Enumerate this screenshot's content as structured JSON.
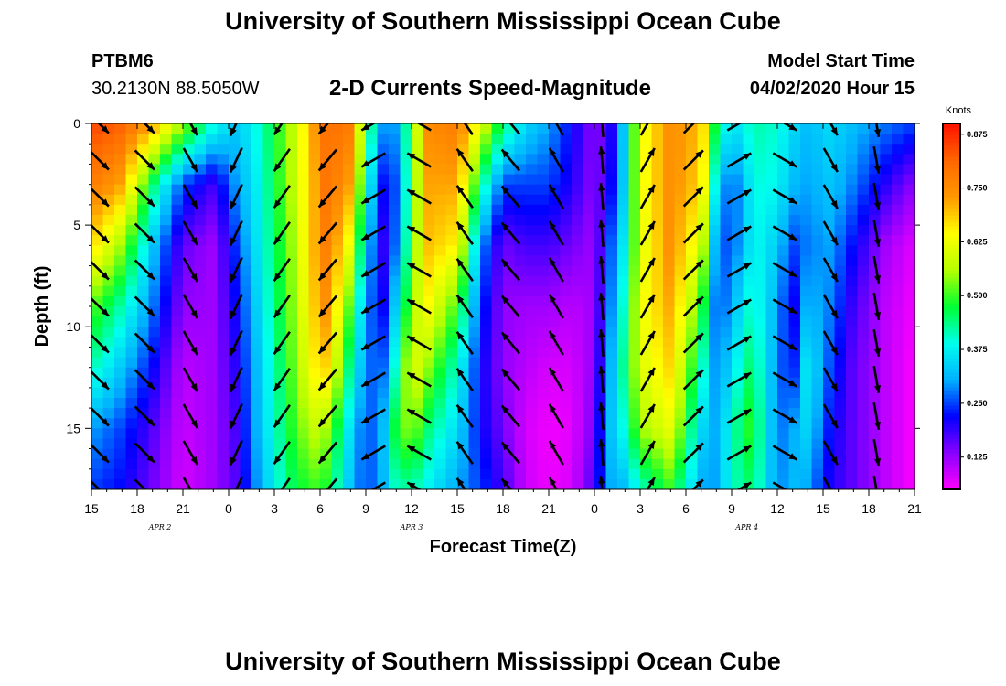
{
  "header": {
    "title": "University of Southern Mississippi Ocean Cube",
    "station_id": "PTBM6",
    "station_coords": "30.2130N 88.5050W",
    "subtitle": "2-D Currents Speed-Magnitude",
    "model_start_label": "Model Start Time",
    "model_start_value": "04/02/2020 Hour 15"
  },
  "footer": {
    "title": "University of Southern Mississippi Ocean Cube"
  },
  "chart_data": {
    "type": "heatmap",
    "title": "2-D Currents Speed-Magnitude",
    "xlabel": "Forecast Time(Z)",
    "ylabel": "Depth (ft)",
    "x_start_hour": 15,
    "x_end_hour": 69,
    "x_ticks": [
      "15",
      "18",
      "21",
      "0",
      "3",
      "6",
      "9",
      "12",
      "15",
      "18",
      "21",
      "0",
      "3",
      "6",
      "9",
      "12",
      "15",
      "18",
      "21"
    ],
    "date_labels": [
      {
        "label": "APR 2",
        "hour": 19.5
      },
      {
        "label": "APR 3",
        "hour": 36
      },
      {
        "label": "APR 4",
        "hour": 58
      }
    ],
    "y_range": [
      0,
      18
    ],
    "y_ticks": [
      0,
      5,
      10,
      15
    ],
    "colorbar": {
      "title": "Knots",
      "range": [
        0.05,
        0.9
      ],
      "labels": [
        "0.875",
        "0.750",
        "0.625",
        "0.500",
        "0.375",
        "0.250",
        "0.125"
      ],
      "label_values": [
        0.875,
        0.75,
        0.625,
        0.5,
        0.375,
        0.25,
        0.125
      ],
      "colors": [
        "#ff00ff",
        "#8a00ff",
        "#0000ff",
        "#00b0ff",
        "#00ffee",
        "#00ff33",
        "#b5ff00",
        "#ffff00",
        "#ff9900",
        "#ff6600",
        "#ff1100"
      ]
    },
    "speed_profiles": {
      "depths_ft": [
        0,
        3,
        6,
        9,
        12,
        15,
        18
      ],
      "points": [
        {
          "hour": 15,
          "speeds": [
            0.85,
            0.78,
            0.68,
            0.52,
            0.42,
            0.3,
            0.25
          ]
        },
        {
          "hour": 17,
          "speeds": [
            0.82,
            0.72,
            0.55,
            0.42,
            0.33,
            0.25,
            0.22
          ]
        },
        {
          "hour": 19,
          "speeds": [
            0.72,
            0.45,
            0.33,
            0.28,
            0.22,
            0.17,
            0.15
          ]
        },
        {
          "hour": 21,
          "speeds": [
            0.55,
            0.25,
            0.16,
            0.13,
            0.1,
            0.09,
            0.08
          ]
        },
        {
          "hour": 23,
          "speeds": [
            0.4,
            0.18,
            0.12,
            0.12,
            0.12,
            0.12,
            0.12
          ]
        },
        {
          "hour": 24.5,
          "speeds": [
            0.33,
            0.3,
            0.25,
            0.22,
            0.2,
            0.18,
            0.17
          ]
        },
        {
          "hour": 26,
          "speeds": [
            0.4,
            0.38,
            0.37,
            0.35,
            0.33,
            0.32,
            0.3
          ]
        },
        {
          "hour": 28,
          "speeds": [
            0.55,
            0.55,
            0.53,
            0.52,
            0.5,
            0.48,
            0.45
          ]
        },
        {
          "hour": 29.5,
          "speeds": [
            0.72,
            0.7,
            0.7,
            0.68,
            0.65,
            0.58,
            0.5
          ]
        },
        {
          "hour": 30.5,
          "speeds": [
            0.8,
            0.8,
            0.78,
            0.75,
            0.68,
            0.55,
            0.48
          ]
        },
        {
          "hour": 32,
          "speeds": [
            0.78,
            0.72,
            0.62,
            0.5,
            0.42,
            0.35,
            0.32
          ]
        },
        {
          "hour": 33,
          "speeds": [
            0.5,
            0.42,
            0.35,
            0.3,
            0.28,
            0.25,
            0.25
          ]
        },
        {
          "hour": 34,
          "speeds": [
            0.3,
            0.22,
            0.18,
            0.2,
            0.25,
            0.3,
            0.3
          ]
        },
        {
          "hour": 35,
          "speeds": [
            0.3,
            0.26,
            0.28,
            0.35,
            0.42,
            0.5,
            0.42
          ]
        },
        {
          "hour": 36,
          "speeds": [
            0.5,
            0.48,
            0.5,
            0.55,
            0.62,
            0.55,
            0.42
          ]
        },
        {
          "hour": 37,
          "speeds": [
            0.75,
            0.72,
            0.7,
            0.65,
            0.55,
            0.45,
            0.38
          ]
        },
        {
          "hour": 39,
          "speeds": [
            0.78,
            0.72,
            0.65,
            0.5,
            0.4,
            0.35,
            0.3
          ]
        },
        {
          "hour": 40.5,
          "speeds": [
            0.62,
            0.45,
            0.3,
            0.25,
            0.22,
            0.22,
            0.25
          ]
        },
        {
          "hour": 42,
          "speeds": [
            0.45,
            0.25,
            0.15,
            0.13,
            0.13,
            0.15,
            0.18
          ]
        },
        {
          "hour": 43.5,
          "speeds": [
            0.35,
            0.25,
            0.18,
            0.12,
            0.1,
            0.08,
            0.09
          ]
        },
        {
          "hour": 45,
          "speeds": [
            0.3,
            0.25,
            0.18,
            0.12,
            0.08,
            0.06,
            0.06
          ]
        },
        {
          "hour": 46.5,
          "speeds": [
            0.22,
            0.2,
            0.15,
            0.1,
            0.08,
            0.07,
            0.08
          ]
        },
        {
          "hour": 48,
          "speeds": [
            0.13,
            0.13,
            0.12,
            0.12,
            0.13,
            0.15,
            0.18
          ]
        },
        {
          "hour": 49,
          "speeds": [
            0.18,
            0.2,
            0.25,
            0.27,
            0.3,
            0.32,
            0.3
          ]
        },
        {
          "hour": 50,
          "speeds": [
            0.35,
            0.35,
            0.38,
            0.42,
            0.45,
            0.4,
            0.32
          ]
        },
        {
          "hour": 51,
          "speeds": [
            0.62,
            0.62,
            0.6,
            0.62,
            0.6,
            0.55,
            0.4
          ]
        },
        {
          "hour": 53,
          "speeds": [
            0.75,
            0.75,
            0.75,
            0.72,
            0.68,
            0.62,
            0.5
          ]
        },
        {
          "hour": 55,
          "speeds": [
            0.7,
            0.68,
            0.6,
            0.5,
            0.42,
            0.35,
            0.3
          ]
        },
        {
          "hour": 56,
          "speeds": [
            0.45,
            0.35,
            0.28,
            0.25,
            0.28,
            0.3,
            0.3
          ]
        },
        {
          "hour": 57,
          "speeds": [
            0.35,
            0.25,
            0.25,
            0.3,
            0.35,
            0.4,
            0.4
          ]
        },
        {
          "hour": 58,
          "speeds": [
            0.4,
            0.35,
            0.35,
            0.4,
            0.45,
            0.5,
            0.45
          ]
        },
        {
          "hour": 59,
          "speeds": [
            0.42,
            0.4,
            0.38,
            0.38,
            0.4,
            0.42,
            0.4
          ]
        },
        {
          "hour": 60,
          "speeds": [
            0.4,
            0.38,
            0.33,
            0.3,
            0.28,
            0.27,
            0.28
          ]
        },
        {
          "hour": 61,
          "speeds": [
            0.35,
            0.32,
            0.25,
            0.2,
            0.22,
            0.3,
            0.32
          ]
        },
        {
          "hour": 62,
          "speeds": [
            0.32,
            0.3,
            0.28,
            0.32,
            0.38,
            0.35,
            0.3
          ]
        },
        {
          "hour": 63.5,
          "speeds": [
            0.35,
            0.33,
            0.3,
            0.28,
            0.25,
            0.22,
            0.2
          ]
        },
        {
          "hour": 65,
          "speeds": [
            0.32,
            0.28,
            0.22,
            0.18,
            0.16,
            0.16,
            0.16
          ]
        },
        {
          "hour": 67,
          "speeds": [
            0.28,
            0.2,
            0.12,
            0.1,
            0.1,
            0.1,
            0.1
          ]
        },
        {
          "hour": 69,
          "speeds": [
            0.25,
            0.13,
            0.07,
            0.06,
            0.05,
            0.05,
            0.05
          ]
        }
      ]
    },
    "vector_depths_ft": [
      0,
      1.8,
      3.6,
      5.4,
      7.2,
      9.0,
      10.8,
      12.6,
      14.4,
      16.2,
      18
    ],
    "vector_columns": [
      {
        "hour": 15.5,
        "dir_deg": 135,
        "speed": 0.8
      },
      {
        "hour": 18.5,
        "dir_deg": 135,
        "speed": 0.7
      },
      {
        "hour": 21.5,
        "dir_deg": 150,
        "speed": 0.4
      },
      {
        "hour": 24.5,
        "dir_deg": 205,
        "speed": 0.3
      },
      {
        "hour": 27.5,
        "dir_deg": 215,
        "speed": 0.5
      },
      {
        "hour": 30.5,
        "dir_deg": 220,
        "speed": 0.75
      },
      {
        "hour": 33.5,
        "dir_deg": 240,
        "speed": 0.5
      },
      {
        "hour": 36.5,
        "dir_deg": 300,
        "speed": 0.5
      },
      {
        "hour": 39.5,
        "dir_deg": 325,
        "speed": 0.6
      },
      {
        "hour": 42.5,
        "dir_deg": 320,
        "speed": 0.3
      },
      {
        "hour": 45.5,
        "dir_deg": 330,
        "speed": 0.2
      },
      {
        "hour": 48.5,
        "dir_deg": 355,
        "speed": 0.15
      },
      {
        "hour": 51.5,
        "dir_deg": 30,
        "speed": 0.6
      },
      {
        "hour": 54.5,
        "dir_deg": 45,
        "speed": 0.7
      },
      {
        "hour": 57.5,
        "dir_deg": 60,
        "speed": 0.4
      },
      {
        "hour": 60.5,
        "dir_deg": 120,
        "speed": 0.35
      },
      {
        "hour": 63.5,
        "dir_deg": 150,
        "speed": 0.3
      },
      {
        "hour": 66.5,
        "dir_deg": 170,
        "speed": 0.2
      }
    ]
  }
}
